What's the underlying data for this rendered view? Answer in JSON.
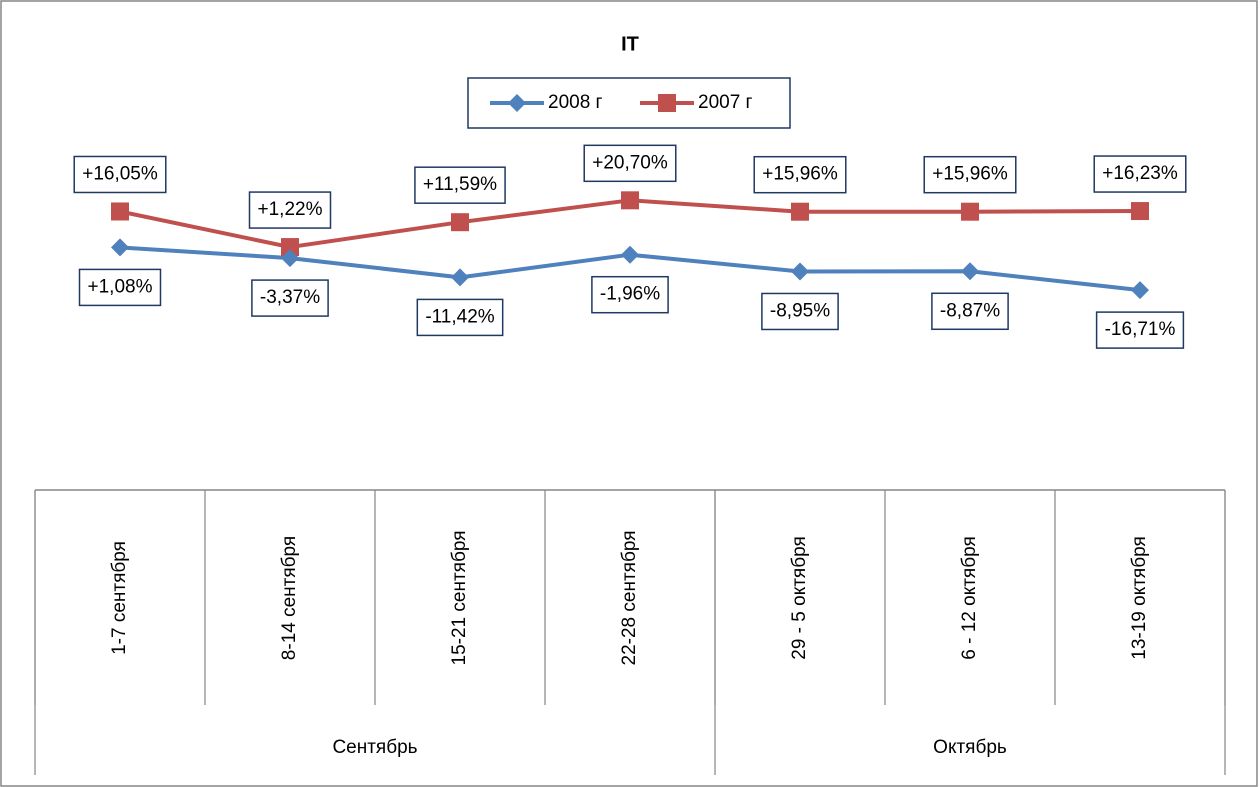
{
  "chart_data": {
    "type": "line",
    "title": "IT",
    "categories": [
      "1-7 сентября",
      "8-14 сентября",
      "15-21 сентября",
      "22-28 сентября",
      "29 - 5 октября",
      "6 - 12 октября",
      "13-19 октября"
    ],
    "category_groups": [
      {
        "label": "Сентябрь",
        "count": 4
      },
      {
        "label": "Октябрь",
        "count": 3
      }
    ],
    "series": [
      {
        "name": "2008 г",
        "color": "#4f81bd",
        "marker": "diamond",
        "values": [
          1.08,
          -3.37,
          -11.42,
          -1.96,
          -8.95,
          -8.87,
          -16.71
        ],
        "value_labels": [
          "+1,08%",
          "-3,37%",
          "-11,42%",
          "-1,96%",
          "-8,95%",
          "-8,87%",
          "-16,71%"
        ]
      },
      {
        "name": "2007 г",
        "color": "#c0504d",
        "marker": "square",
        "values": [
          16.05,
          1.22,
          11.59,
          20.7,
          15.96,
          15.96,
          16.23
        ],
        "value_labels": [
          "+16,05%",
          "+1,22%",
          "+11,59%",
          "+20,70%",
          "+15,96%",
          "+15,96%",
          "+16,23%"
        ]
      }
    ],
    "ylim": [
      -100,
      50
    ],
    "grid": false,
    "legend": "top"
  }
}
